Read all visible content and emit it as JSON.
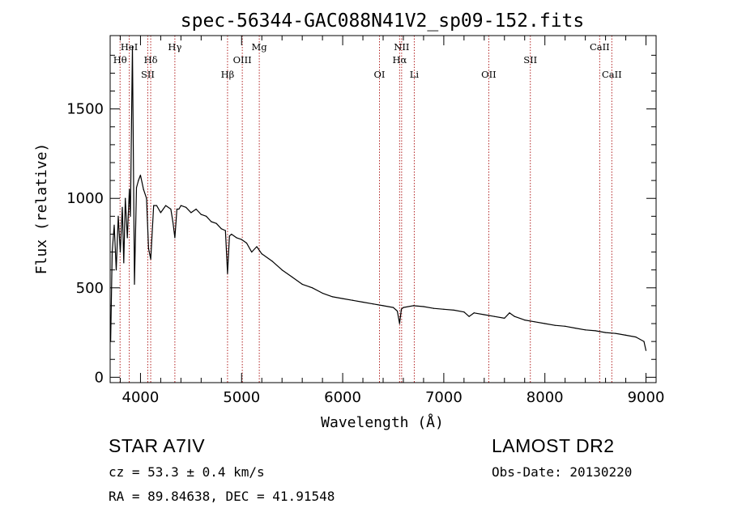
{
  "chart_data": {
    "type": "line",
    "title": "spec-56344-GAC088N41V2_sp09-152.fits",
    "xlabel": "Wavelength (Å)",
    "ylabel": "Flux (relative)",
    "xlim": [
      3700,
      9100
    ],
    "ylim": [
      -30,
      1910
    ],
    "xticks": [
      4000,
      5000,
      6000,
      7000,
      8000,
      9000
    ],
    "yticks": [
      0,
      500,
      1000,
      1500
    ],
    "xtick_labels": [
      "4000",
      "5000",
      "6000",
      "7000",
      "8000",
      "9000"
    ],
    "ytick_labels": [
      "0",
      "500",
      "1000",
      "1500"
    ],
    "grid": false,
    "series": [
      {
        "x": [
          3705,
          3720,
          3740,
          3760,
          3780,
          3800,
          3820,
          3835,
          3850,
          3870,
          3890,
          3900,
          3920,
          3940,
          3960,
          3980,
          4000,
          4030,
          4060,
          4080,
          4101,
          4130,
          4160,
          4200,
          4250,
          4300,
          4320,
          4340,
          4360,
          4380,
          4400,
          4450,
          4500,
          4550,
          4600,
          4650,
          4700,
          4750,
          4800,
          4840,
          4861,
          4880,
          4900,
          4950,
          5000,
          5050,
          5100,
          5150,
          5200,
          5300,
          5400,
          5500,
          5600,
          5700,
          5800,
          5900,
          6000,
          6100,
          6200,
          6300,
          6400,
          6500,
          6540,
          6563,
          6580,
          6600,
          6700,
          6800,
          6900,
          7000,
          7100,
          7200,
          7250,
          7300,
          7400,
          7500,
          7600,
          7650,
          7700,
          7800,
          7900,
          8000,
          8100,
          8200,
          8300,
          8400,
          8500,
          8600,
          8700,
          8800,
          8900,
          8980,
          9000
        ],
        "y": [
          200,
          700,
          850,
          600,
          900,
          700,
          950,
          640,
          1000,
          780,
          1050,
          900,
          1850,
          520,
          1060,
          1100,
          1130,
          1050,
          1000,
          720,
          660,
          960,
          960,
          920,
          960,
          940,
          870,
          780,
          940,
          940,
          960,
          950,
          920,
          940,
          910,
          900,
          870,
          860,
          830,
          820,
          580,
          790,
          800,
          780,
          770,
          750,
          700,
          730,
          690,
          650,
          600,
          560,
          520,
          500,
          470,
          450,
          440,
          430,
          420,
          410,
          400,
          390,
          370,
          300,
          380,
          390,
          400,
          395,
          385,
          380,
          375,
          365,
          340,
          360,
          350,
          340,
          330,
          360,
          340,
          320,
          310,
          300,
          290,
          285,
          275,
          265,
          260,
          250,
          245,
          235,
          225,
          200,
          150
        ]
      }
    ],
    "line_markers": [
      {
        "label": "Hθ",
        "x": 3798,
        "row": 1
      },
      {
        "label": "HeI",
        "x": 3889,
        "row": 0
      },
      {
        "label": "Hδ",
        "x": 4101,
        "row": 1
      },
      {
        "label": "SII",
        "x": 4072,
        "row": 2
      },
      {
        "label": "Hγ",
        "x": 4340,
        "row": 0
      },
      {
        "label": "Hβ",
        "x": 4861,
        "row": 2
      },
      {
        "label": "OIII",
        "x": 5007,
        "row": 1
      },
      {
        "label": "Mg",
        "x": 5175,
        "row": 0
      },
      {
        "label": "OI",
        "x": 6364,
        "row": 2
      },
      {
        "label": "NII",
        "x": 6583,
        "row": 0
      },
      {
        "label": "Hα",
        "x": 6563,
        "row": 1
      },
      {
        "label": "Li",
        "x": 6708,
        "row": 2
      },
      {
        "label": "OII",
        "x": 7445,
        "row": 2
      },
      {
        "label": "SII",
        "x": 7856,
        "row": 1
      },
      {
        "label": "CaII",
        "x": 8542,
        "row": 0
      },
      {
        "label": "CaII",
        "x": 8662,
        "row": 2
      }
    ],
    "marker_color": "#b22222",
    "line_color": "#000000"
  },
  "info": {
    "class_line": "STAR    A7IV",
    "survey": "LAMOST DR2",
    "cz": "cz = 53.3 ± 0.4 km/s",
    "obs_date": "Obs-Date: 20130220",
    "coords": "RA =  89.84638, DEC =  41.91548"
  }
}
